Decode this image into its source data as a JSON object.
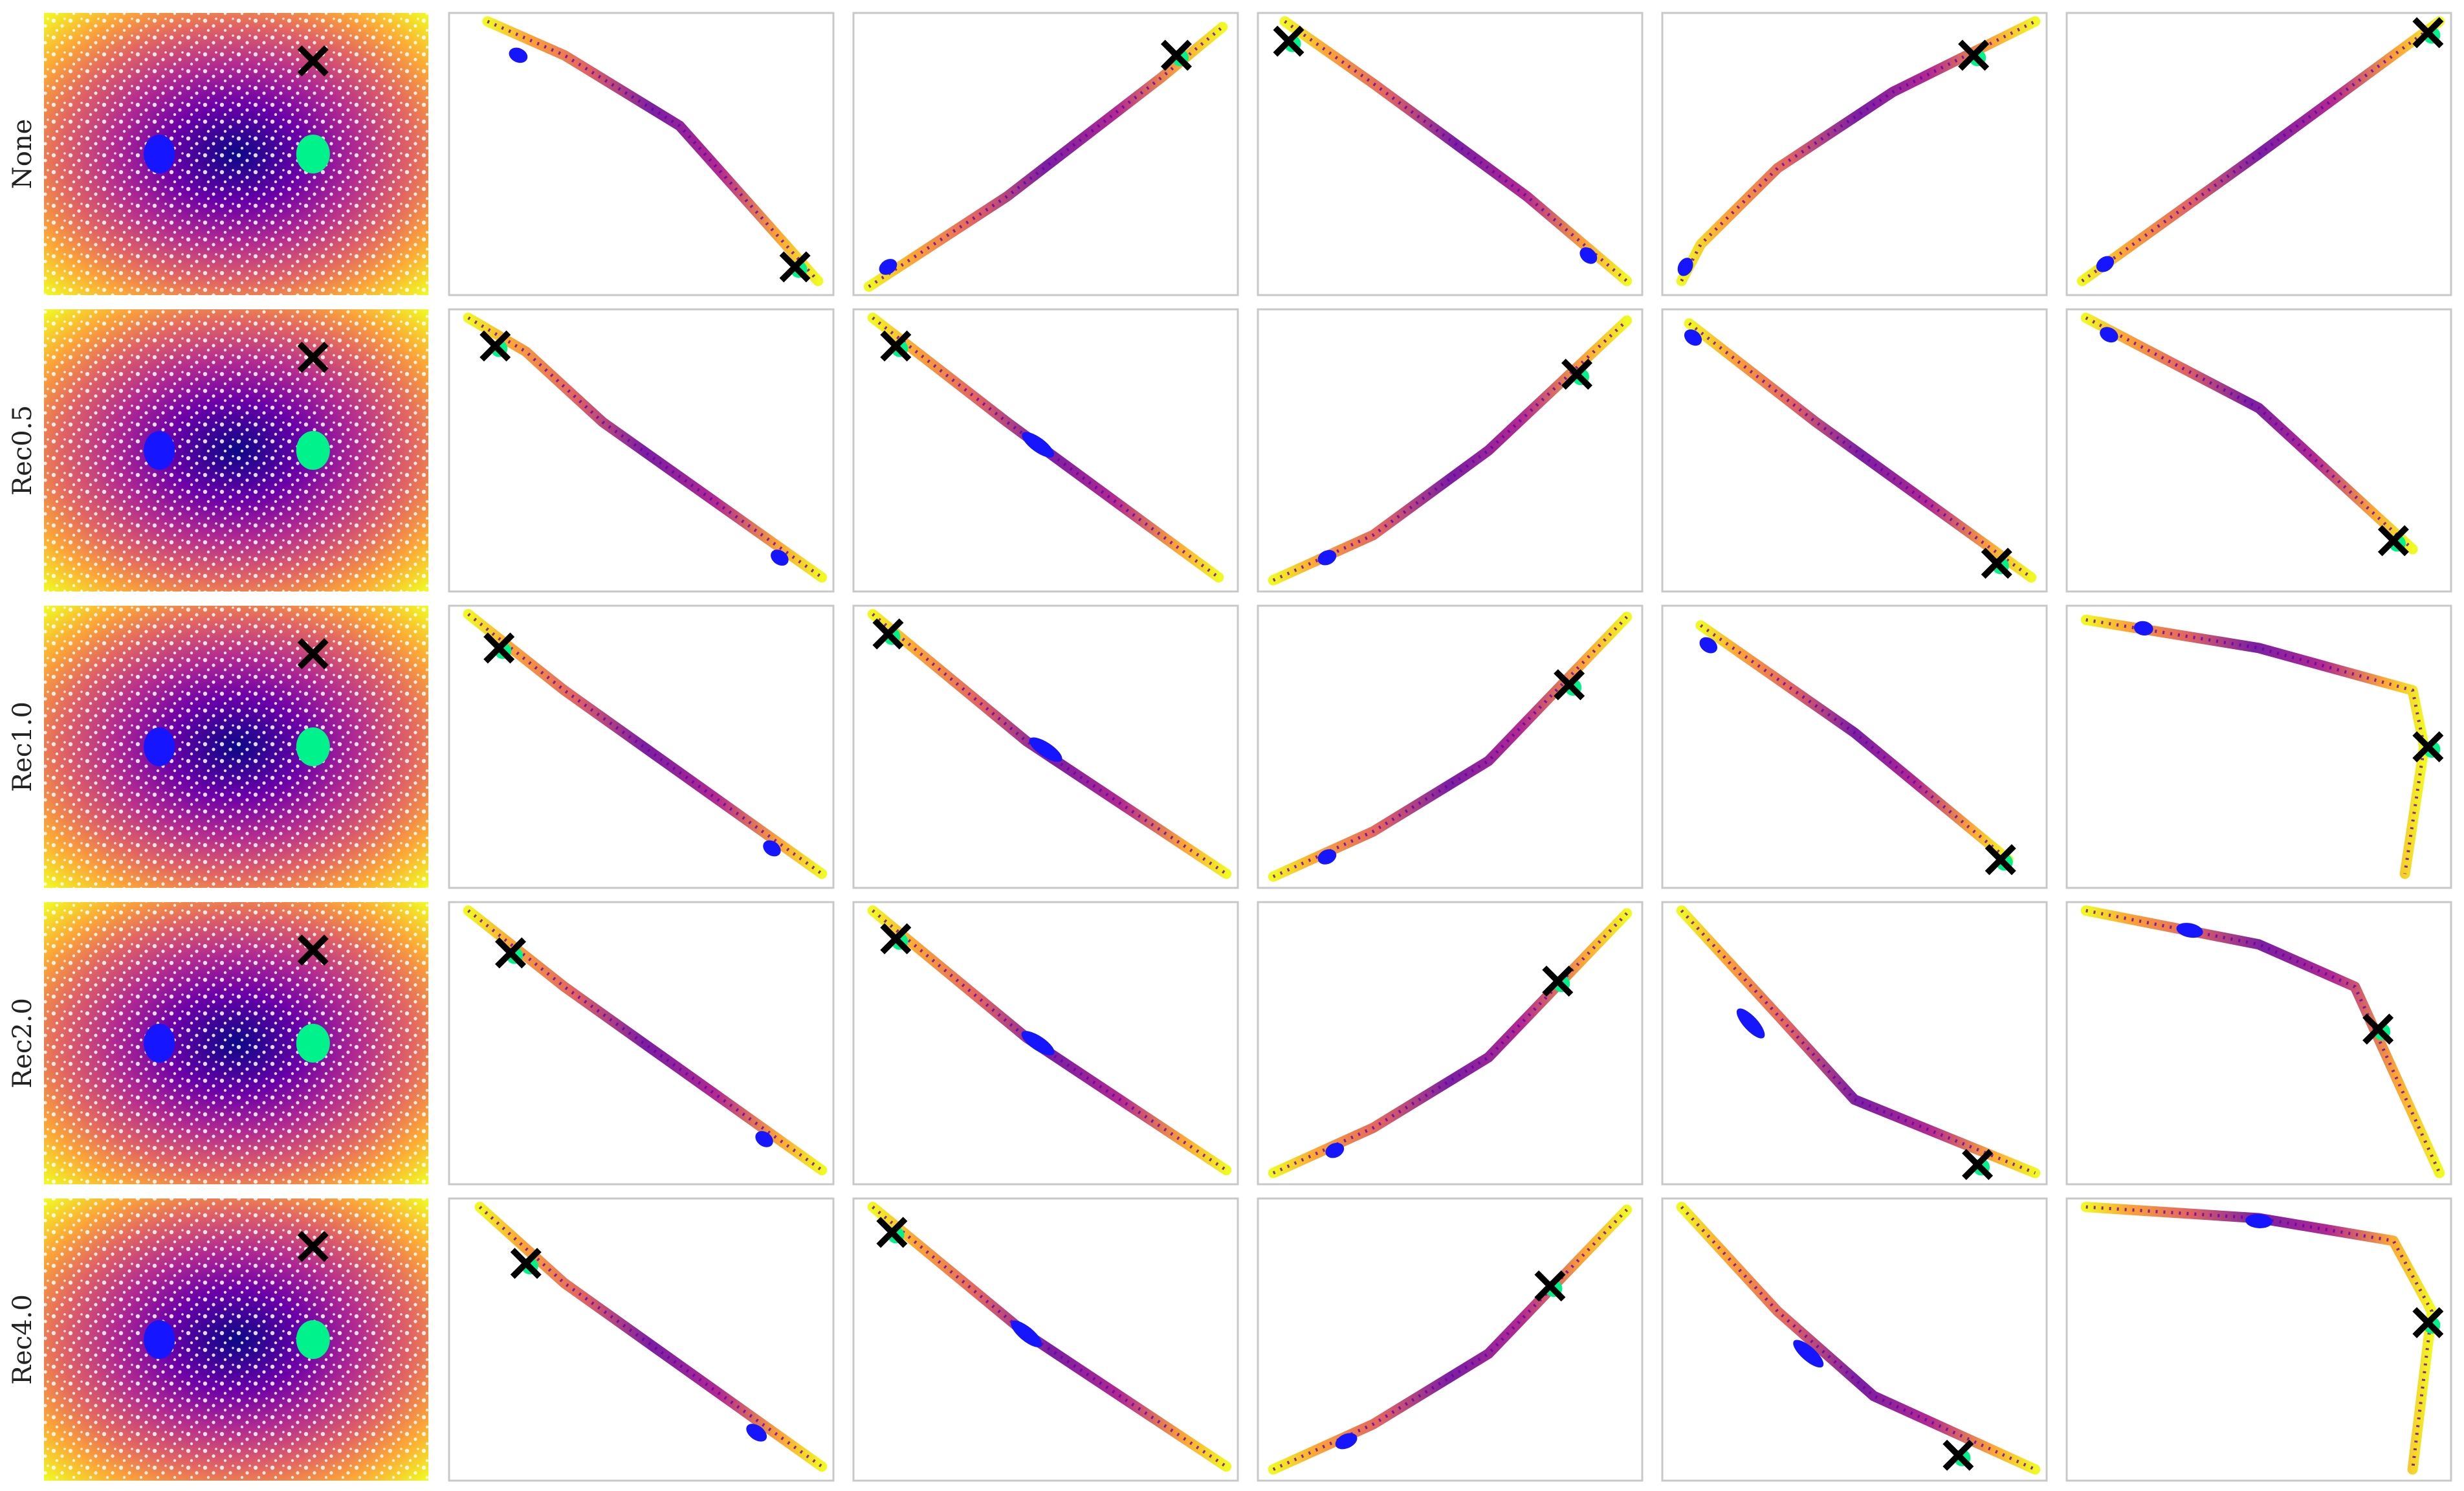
{
  "chart_data": {
    "type": "scatter",
    "layout": "5 rows x 6 columns grid of scatter panels, no axes, no ticks, no legend",
    "row_labels": [
      "None",
      "Rec0.5",
      "Rec1.0",
      "Rec2.0",
      "Rec4.0"
    ],
    "colormap": "plasma",
    "colors": {
      "blue_cluster": "#1515ff",
      "green_cluster": "#00f28a",
      "cross_marker": "#000000",
      "frame": "#c8c8c8",
      "plasma_dark": "#0d0887",
      "plasma_mid": "#b12a90",
      "plasma_orange": "#fca636",
      "plasma_yellow": "#f0f921"
    },
    "markers": {
      "cross": "black X marker",
      "blue_cluster": "blue highlighted cluster",
      "green_cluster": "green highlighted cluster"
    },
    "first_column": {
      "description": "2D disk-like point cloud colored by distance from center (dark center, yellow edges)",
      "center": [
        0.5,
        0.5
      ],
      "blue_cluster": [
        0.3,
        0.5
      ],
      "green_cluster": [
        0.7,
        0.5
      ],
      "cross": [
        0.7,
        0.83
      ]
    },
    "rows": [
      {
        "label": "None",
        "panels": [
          {
            "curve": [
              [
                0.1,
                0.97
              ],
              [
                0.3,
                0.85
              ],
              [
                0.6,
                0.6
              ],
              [
                0.96,
                0.05
              ]
            ],
            "blue": [
              0.18,
              0.85,
              0.03
            ],
            "cross": [
              0.9,
              0.1
            ]
          },
          {
            "curve": [
              [
                0.04,
                0.03
              ],
              [
                0.4,
                0.35
              ],
              [
                0.8,
                0.77
              ],
              [
                0.96,
                0.95
              ]
            ],
            "blue": [
              0.09,
              0.1,
              0.03
            ],
            "cross": [
              0.84,
              0.85
            ]
          },
          {
            "curve": [
              [
                0.07,
                0.97
              ],
              [
                0.3,
                0.75
              ],
              [
                0.7,
                0.35
              ],
              [
                0.96,
                0.05
              ]
            ],
            "blue": [
              0.86,
              0.14,
              0.03
            ],
            "cross": [
              0.08,
              0.9
            ]
          },
          {
            "curve": [
              [
                0.05,
                0.05
              ],
              [
                0.1,
                0.18
              ],
              [
                0.3,
                0.45
              ],
              [
                0.6,
                0.72
              ],
              [
                0.97,
                0.97
              ]
            ],
            "blue": [
              0.06,
              0.1,
              0.03
            ],
            "cross": [
              0.81,
              0.85
            ]
          },
          {
            "curve": [
              [
                0.04,
                0.05
              ],
              [
                0.5,
                0.5
              ],
              [
                0.97,
                0.97
              ]
            ],
            "blue": [
              0.1,
              0.11,
              0.03
            ],
            "cross": [
              0.94,
              0.93
            ]
          }
        ]
      },
      {
        "label": "Rec0.5",
        "panels": [
          {
            "curve": [
              [
                0.05,
                0.97
              ],
              [
                0.2,
                0.85
              ],
              [
                0.4,
                0.6
              ],
              [
                0.97,
                0.05
              ]
            ],
            "blue": [
              0.86,
              0.12,
              0.03
            ],
            "cross": [
              0.12,
              0.87
            ]
          },
          {
            "curve": [
              [
                0.05,
                0.97
              ],
              [
                0.4,
                0.6
              ],
              [
                0.95,
                0.05
              ]
            ],
            "blue": [
              0.48,
              0.52,
              0.08
            ],
            "cross": [
              0.11,
              0.87
            ]
          },
          {
            "curve": [
              [
                0.04,
                0.04
              ],
              [
                0.3,
                0.2
              ],
              [
                0.6,
                0.5
              ],
              [
                0.96,
                0.96
              ]
            ],
            "blue": [
              0.18,
              0.12,
              0.03
            ],
            "cross": [
              0.83,
              0.77
            ]
          },
          {
            "curve": [
              [
                0.07,
                0.95
              ],
              [
                0.4,
                0.6
              ],
              [
                0.96,
                0.05
              ]
            ],
            "blue": [
              0.08,
              0.9,
              0.03
            ],
            "cross": [
              0.87,
              0.1
            ]
          },
          {
            "curve": [
              [
                0.05,
                0.97
              ],
              [
                0.5,
                0.65
              ],
              [
                0.9,
                0.15
              ]
            ],
            "blue": [
              0.11,
              0.91,
              0.03
            ],
            "cross": [
              0.85,
              0.18
            ]
          }
        ]
      },
      {
        "label": "Rec1.0",
        "panels": [
          {
            "curve": [
              [
                0.05,
                0.97
              ],
              [
                0.3,
                0.7
              ],
              [
                0.97,
                0.05
              ]
            ],
            "blue": [
              0.84,
              0.14,
              0.03
            ],
            "cross": [
              0.13,
              0.85
            ]
          },
          {
            "curve": [
              [
                0.05,
                0.97
              ],
              [
                0.45,
                0.52
              ],
              [
                0.97,
                0.05
              ]
            ],
            "blue": [
              0.5,
              0.49,
              0.08
            ],
            "cross": [
              0.09,
              0.9
            ]
          },
          {
            "curve": [
              [
                0.04,
                0.04
              ],
              [
                0.3,
                0.2
              ],
              [
                0.6,
                0.45
              ],
              [
                0.96,
                0.96
              ]
            ],
            "blue": [
              0.18,
              0.11,
              0.03
            ],
            "cross": [
              0.81,
              0.72
            ]
          },
          {
            "curve": [
              [
                0.1,
                0.93
              ],
              [
                0.5,
                0.55
              ],
              [
                0.9,
                0.1
              ]
            ],
            "blue": [
              0.12,
              0.86,
              0.03
            ],
            "cross": [
              0.88,
              0.1
            ]
          },
          {
            "curve": [
              [
                0.05,
                0.95
              ],
              [
                0.5,
                0.85
              ],
              [
                0.9,
                0.7
              ],
              [
                0.93,
                0.5
              ],
              [
                0.88,
                0.05
              ]
            ],
            "blue": [
              0.2,
              0.92,
              0.03
            ],
            "cross": [
              0.94,
              0.5
            ]
          }
        ]
      },
      {
        "label": "Rec2.0",
        "panels": [
          {
            "curve": [
              [
                0.05,
                0.97
              ],
              [
                0.3,
                0.7
              ],
              [
                0.97,
                0.05
              ]
            ],
            "blue": [
              0.82,
              0.16,
              0.03
            ],
            "cross": [
              0.16,
              0.82
            ]
          },
          {
            "curve": [
              [
                0.05,
                0.97
              ],
              [
                0.45,
                0.52
              ],
              [
                0.97,
                0.05
              ]
            ],
            "blue": [
              0.48,
              0.5,
              0.08
            ],
            "cross": [
              0.11,
              0.87
            ]
          },
          {
            "curve": [
              [
                0.04,
                0.04
              ],
              [
                0.3,
                0.2
              ],
              [
                0.6,
                0.45
              ],
              [
                0.96,
                0.96
              ]
            ],
            "blue": [
              0.2,
              0.12,
              0.03
            ],
            "cross": [
              0.78,
              0.72
            ]
          },
          {
            "curve": [
              [
                0.05,
                0.97
              ],
              [
                0.3,
                0.6
              ],
              [
                0.5,
                0.3
              ],
              [
                0.97,
                0.04
              ]
            ],
            "blue": [
              0.23,
              0.57,
              0.08
            ],
            "cross": [
              0.82,
              0.07
            ]
          },
          {
            "curve": [
              [
                0.05,
                0.97
              ],
              [
                0.5,
                0.85
              ],
              [
                0.75,
                0.7
              ],
              [
                0.85,
                0.4
              ],
              [
                0.97,
                0.04
              ]
            ],
            "blue": [
              0.32,
              0.9,
              0.05
            ],
            "cross": [
              0.81,
              0.55
            ]
          }
        ]
      },
      {
        "label": "Rec4.0",
        "panels": [
          {
            "curve": [
              [
                0.08,
                0.97
              ],
              [
                0.3,
                0.7
              ],
              [
                0.97,
                0.05
              ]
            ],
            "blue": [
              0.8,
              0.17,
              0.04
            ],
            "cross": [
              0.2,
              0.77
            ]
          },
          {
            "curve": [
              [
                0.05,
                0.97
              ],
              [
                0.45,
                0.52
              ],
              [
                0.97,
                0.05
              ]
            ],
            "blue": [
              0.45,
              0.52,
              0.08
            ],
            "cross": [
              0.1,
              0.88
            ]
          },
          {
            "curve": [
              [
                0.04,
                0.04
              ],
              [
                0.3,
                0.2
              ],
              [
                0.6,
                0.45
              ],
              [
                0.96,
                0.96
              ]
            ],
            "blue": [
              0.23,
              0.14,
              0.04
            ],
            "cross": [
              0.76,
              0.69
            ]
          },
          {
            "curve": [
              [
                0.05,
                0.97
              ],
              [
                0.3,
                0.6
              ],
              [
                0.55,
                0.3
              ],
              [
                0.97,
                0.04
              ]
            ],
            "blue": [
              0.38,
              0.45,
              0.08
            ],
            "cross": [
              0.77,
              0.09
            ]
          },
          {
            "curve": [
              [
                0.05,
                0.97
              ],
              [
                0.5,
                0.93
              ],
              [
                0.85,
                0.85
              ],
              [
                0.95,
                0.6
              ],
              [
                0.9,
                0.04
              ]
            ],
            "blue": [
              0.5,
              0.92,
              0.05
            ],
            "cross": [
              0.94,
              0.56
            ]
          }
        ]
      }
    ]
  }
}
